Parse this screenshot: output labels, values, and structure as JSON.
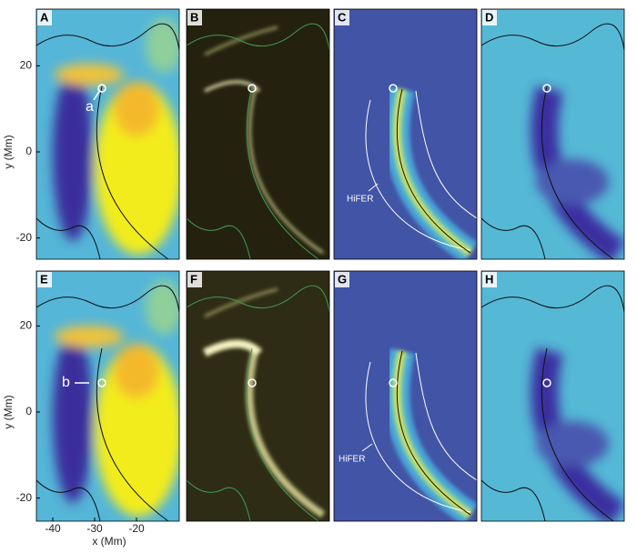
{
  "panels": [
    {
      "label": "A"
    },
    {
      "label": "B"
    },
    {
      "label": "C"
    },
    {
      "label": "D"
    },
    {
      "label": "E"
    },
    {
      "label": "F"
    },
    {
      "label": "G"
    },
    {
      "label": "H"
    }
  ],
  "annotations": {
    "a": "a",
    "b": "b",
    "hifer_top": "HiFER",
    "hifer_bottom": "HiFER"
  },
  "axes": {
    "y_label": "y (Mm)",
    "x_label": "x (Mm)",
    "y_ticks_top": [
      20,
      0,
      -20
    ],
    "y_ticks_bottom": [
      20,
      0,
      -20
    ],
    "x_ticks": [
      -40,
      -30,
      -20
    ]
  }
}
